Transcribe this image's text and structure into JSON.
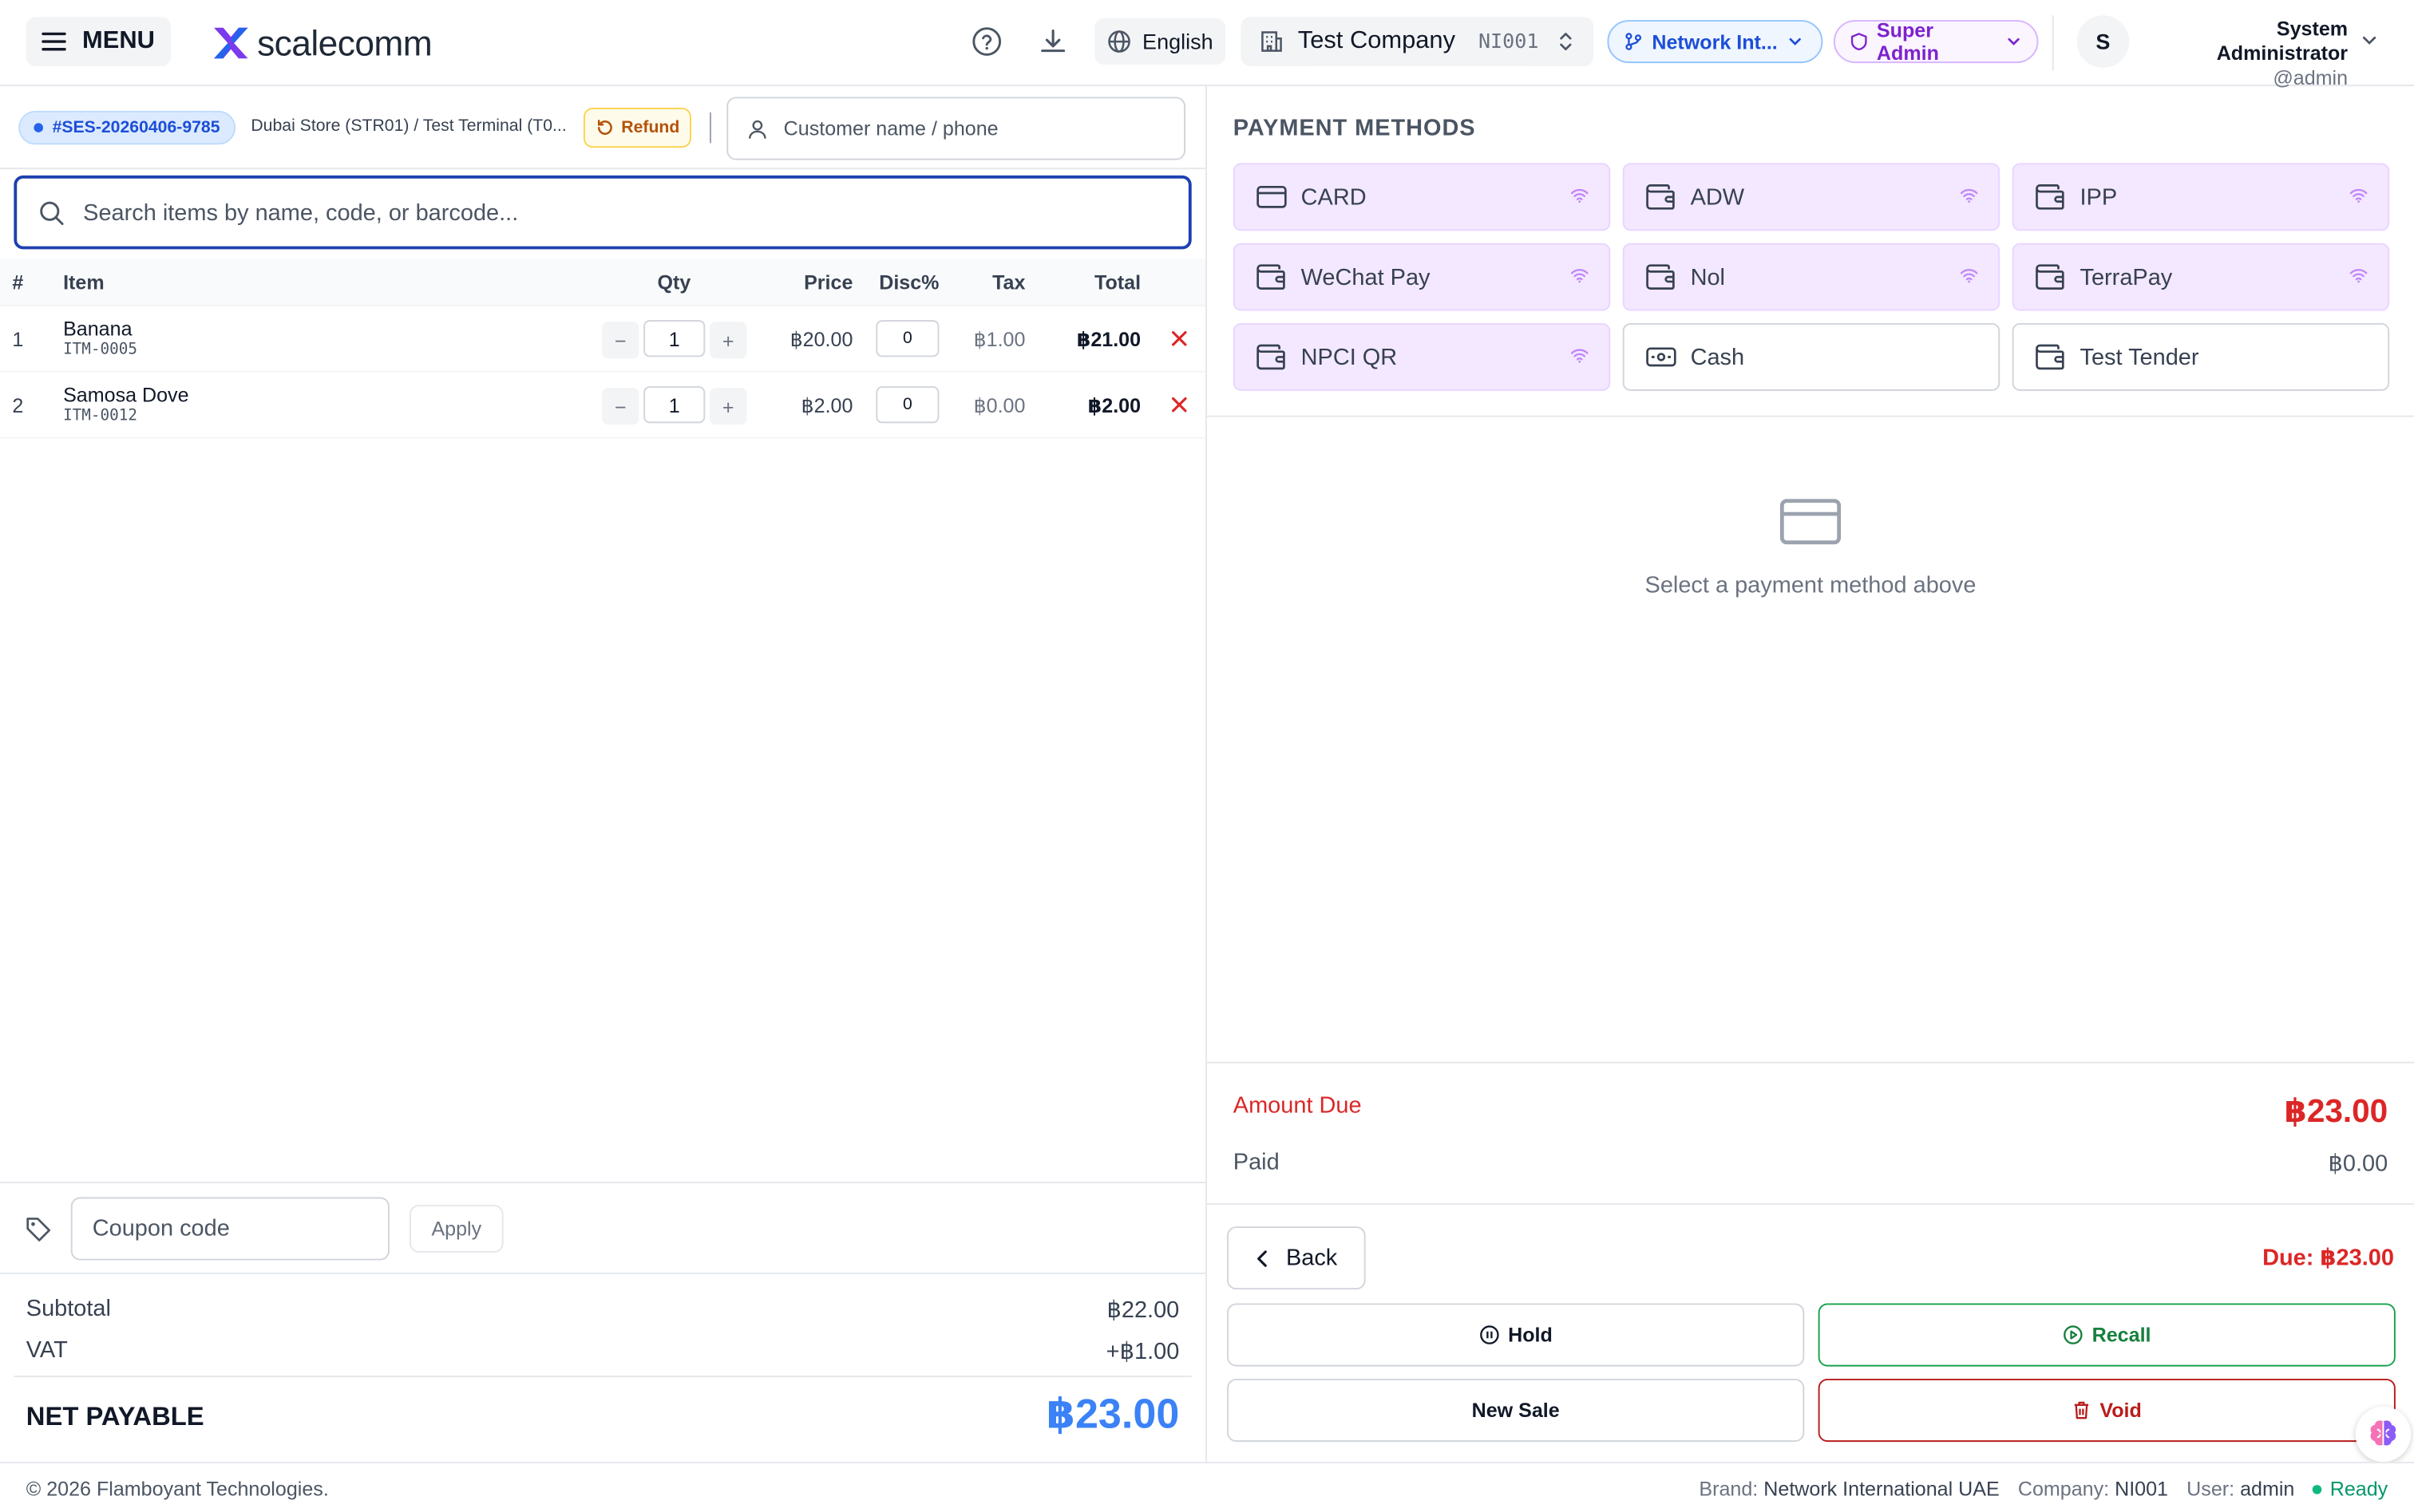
{
  "header": {
    "menu_label": "MENU",
    "logo_text": "scalecomm",
    "language": "English",
    "company_name": "Test Company",
    "company_code": "NI001",
    "network_pill": "Network Int...",
    "role_pill": "Super Admin",
    "avatar_initial": "S",
    "user_name": "System Administrator",
    "user_handle": "@admin"
  },
  "session": {
    "id": "#SES-20260406-9785",
    "store": "Dubai Store (STR01) / Test Terminal (T0...",
    "refund_label": "Refund",
    "customer_placeholder": "Customer name / phone"
  },
  "search": {
    "placeholder": "Search items by name, code, or barcode..."
  },
  "table": {
    "headers": {
      "num": "#",
      "item": "Item",
      "qty": "Qty",
      "price": "Price",
      "disc": "Disc%",
      "tax": "Tax",
      "total": "Total"
    },
    "rows": [
      {
        "num": "1",
        "name": "Banana",
        "code": "ITM-0005",
        "qty": "1",
        "price": "฿20.00",
        "disc": "0",
        "tax": "฿1.00",
        "total": "฿21.00"
      },
      {
        "num": "2",
        "name": "Samosa Dove",
        "code": "ITM-0012",
        "qty": "1",
        "price": "฿2.00",
        "disc": "0",
        "tax": "฿0.00",
        "total": "฿2.00"
      }
    ]
  },
  "coupon": {
    "placeholder": "Coupon code",
    "apply_label": "Apply"
  },
  "totals": {
    "subtotal_label": "Subtotal",
    "subtotal_value": "฿22.00",
    "vat_label": "VAT",
    "vat_value": "+฿1.00",
    "net_label": "NET PAYABLE",
    "net_value": "฿23.00"
  },
  "payment": {
    "title": "PAYMENT METHODS",
    "methods": [
      {
        "label": "CARD",
        "icon": "credit-card-icon",
        "online": true
      },
      {
        "label": "ADW",
        "icon": "wallet-icon",
        "online": true
      },
      {
        "label": "IPP",
        "icon": "wallet-icon",
        "online": true
      },
      {
        "label": "WeChat Pay",
        "icon": "wallet-icon",
        "online": true
      },
      {
        "label": "Nol",
        "icon": "wallet-icon",
        "online": true
      },
      {
        "label": "TerraPay",
        "icon": "wallet-icon",
        "online": true
      },
      {
        "label": "NPCI QR",
        "icon": "wallet-icon",
        "online": true
      },
      {
        "label": "Cash",
        "icon": "banknote-icon",
        "online": false
      },
      {
        "label": "Test Tender",
        "icon": "wallet-icon",
        "online": false
      }
    ],
    "empty_text": "Select a payment method above",
    "amount_due_label": "Amount Due",
    "amount_due_value": "฿23.00",
    "paid_label": "Paid",
    "paid_value": "฿0.00"
  },
  "actions": {
    "back_label": "Back",
    "due_inline": "Due: ฿23.00",
    "hold_label": "Hold",
    "recall_label": "Recall",
    "new_sale_label": "New Sale",
    "void_label": "Void"
  },
  "footer": {
    "copyright": "© 2026 Flamboyant Technologies.",
    "brand_label": "Brand:",
    "brand_value": "Network International UAE",
    "company_label": "Company:",
    "company_value": "NI001",
    "user_label": "User:",
    "user_value": "admin",
    "status": "Ready"
  },
  "colors": {
    "accent_blue": "#1e40af",
    "net_payable": "#3b82f6",
    "online_tile": "#f3e8ff",
    "danger": "#dc2626",
    "success": "#15803d"
  }
}
